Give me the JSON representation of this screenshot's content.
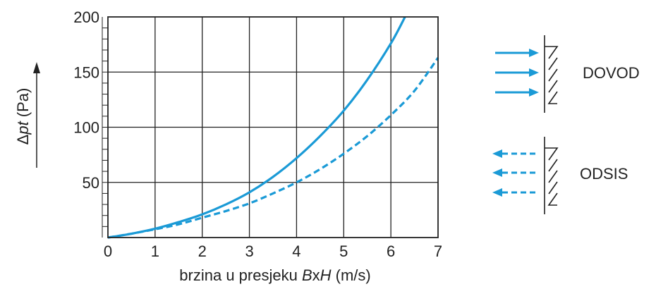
{
  "chart_data": {
    "type": "line",
    "xlabel": {
      "prefix": "brzina u presjeku ",
      "b": "B",
      "x": "x",
      "h": "H",
      "suffix": " (m/s)"
    },
    "ylabel": {
      "delta": "Δ",
      "pt": "pt",
      "suffix": " (Pa)"
    },
    "xlim": [
      0,
      7
    ],
    "ylim": [
      0,
      200
    ],
    "x_ticks": [
      "0",
      "1",
      "2",
      "3",
      "4",
      "5",
      "6",
      "7"
    ],
    "y_ticks": [
      {
        "value": 50,
        "label": "50"
      },
      {
        "value": 100,
        "label": "100"
      },
      {
        "value": 150,
        "label": "150"
      },
      {
        "value": 200,
        "label": "200"
      }
    ],
    "grid": true,
    "legend_position": "right",
    "series": [
      {
        "name": "DOVOD",
        "style": "solid",
        "color": "#1a9ad6",
        "x": [
          0,
          0.5,
          1,
          1.5,
          2,
          2.5,
          3,
          3.5,
          4,
          4.5,
          5,
          5.5,
          6,
          6.3
        ],
        "y": [
          0,
          3.5,
          8,
          14,
          21,
          30,
          41,
          55,
          72,
          92,
          115,
          143,
          176,
          200
        ]
      },
      {
        "name": "ODSIS",
        "style": "dashed",
        "color": "#1a9ad6",
        "x": [
          0,
          0.5,
          1,
          1.5,
          2,
          2.5,
          3,
          3.5,
          4,
          4.5,
          5,
          5.5,
          6,
          6.5,
          7
        ],
        "y": [
          0,
          3.5,
          7.5,
          12,
          18,
          24,
          31,
          40,
          50,
          62,
          76,
          92,
          111,
          133,
          163
        ]
      }
    ]
  }
}
